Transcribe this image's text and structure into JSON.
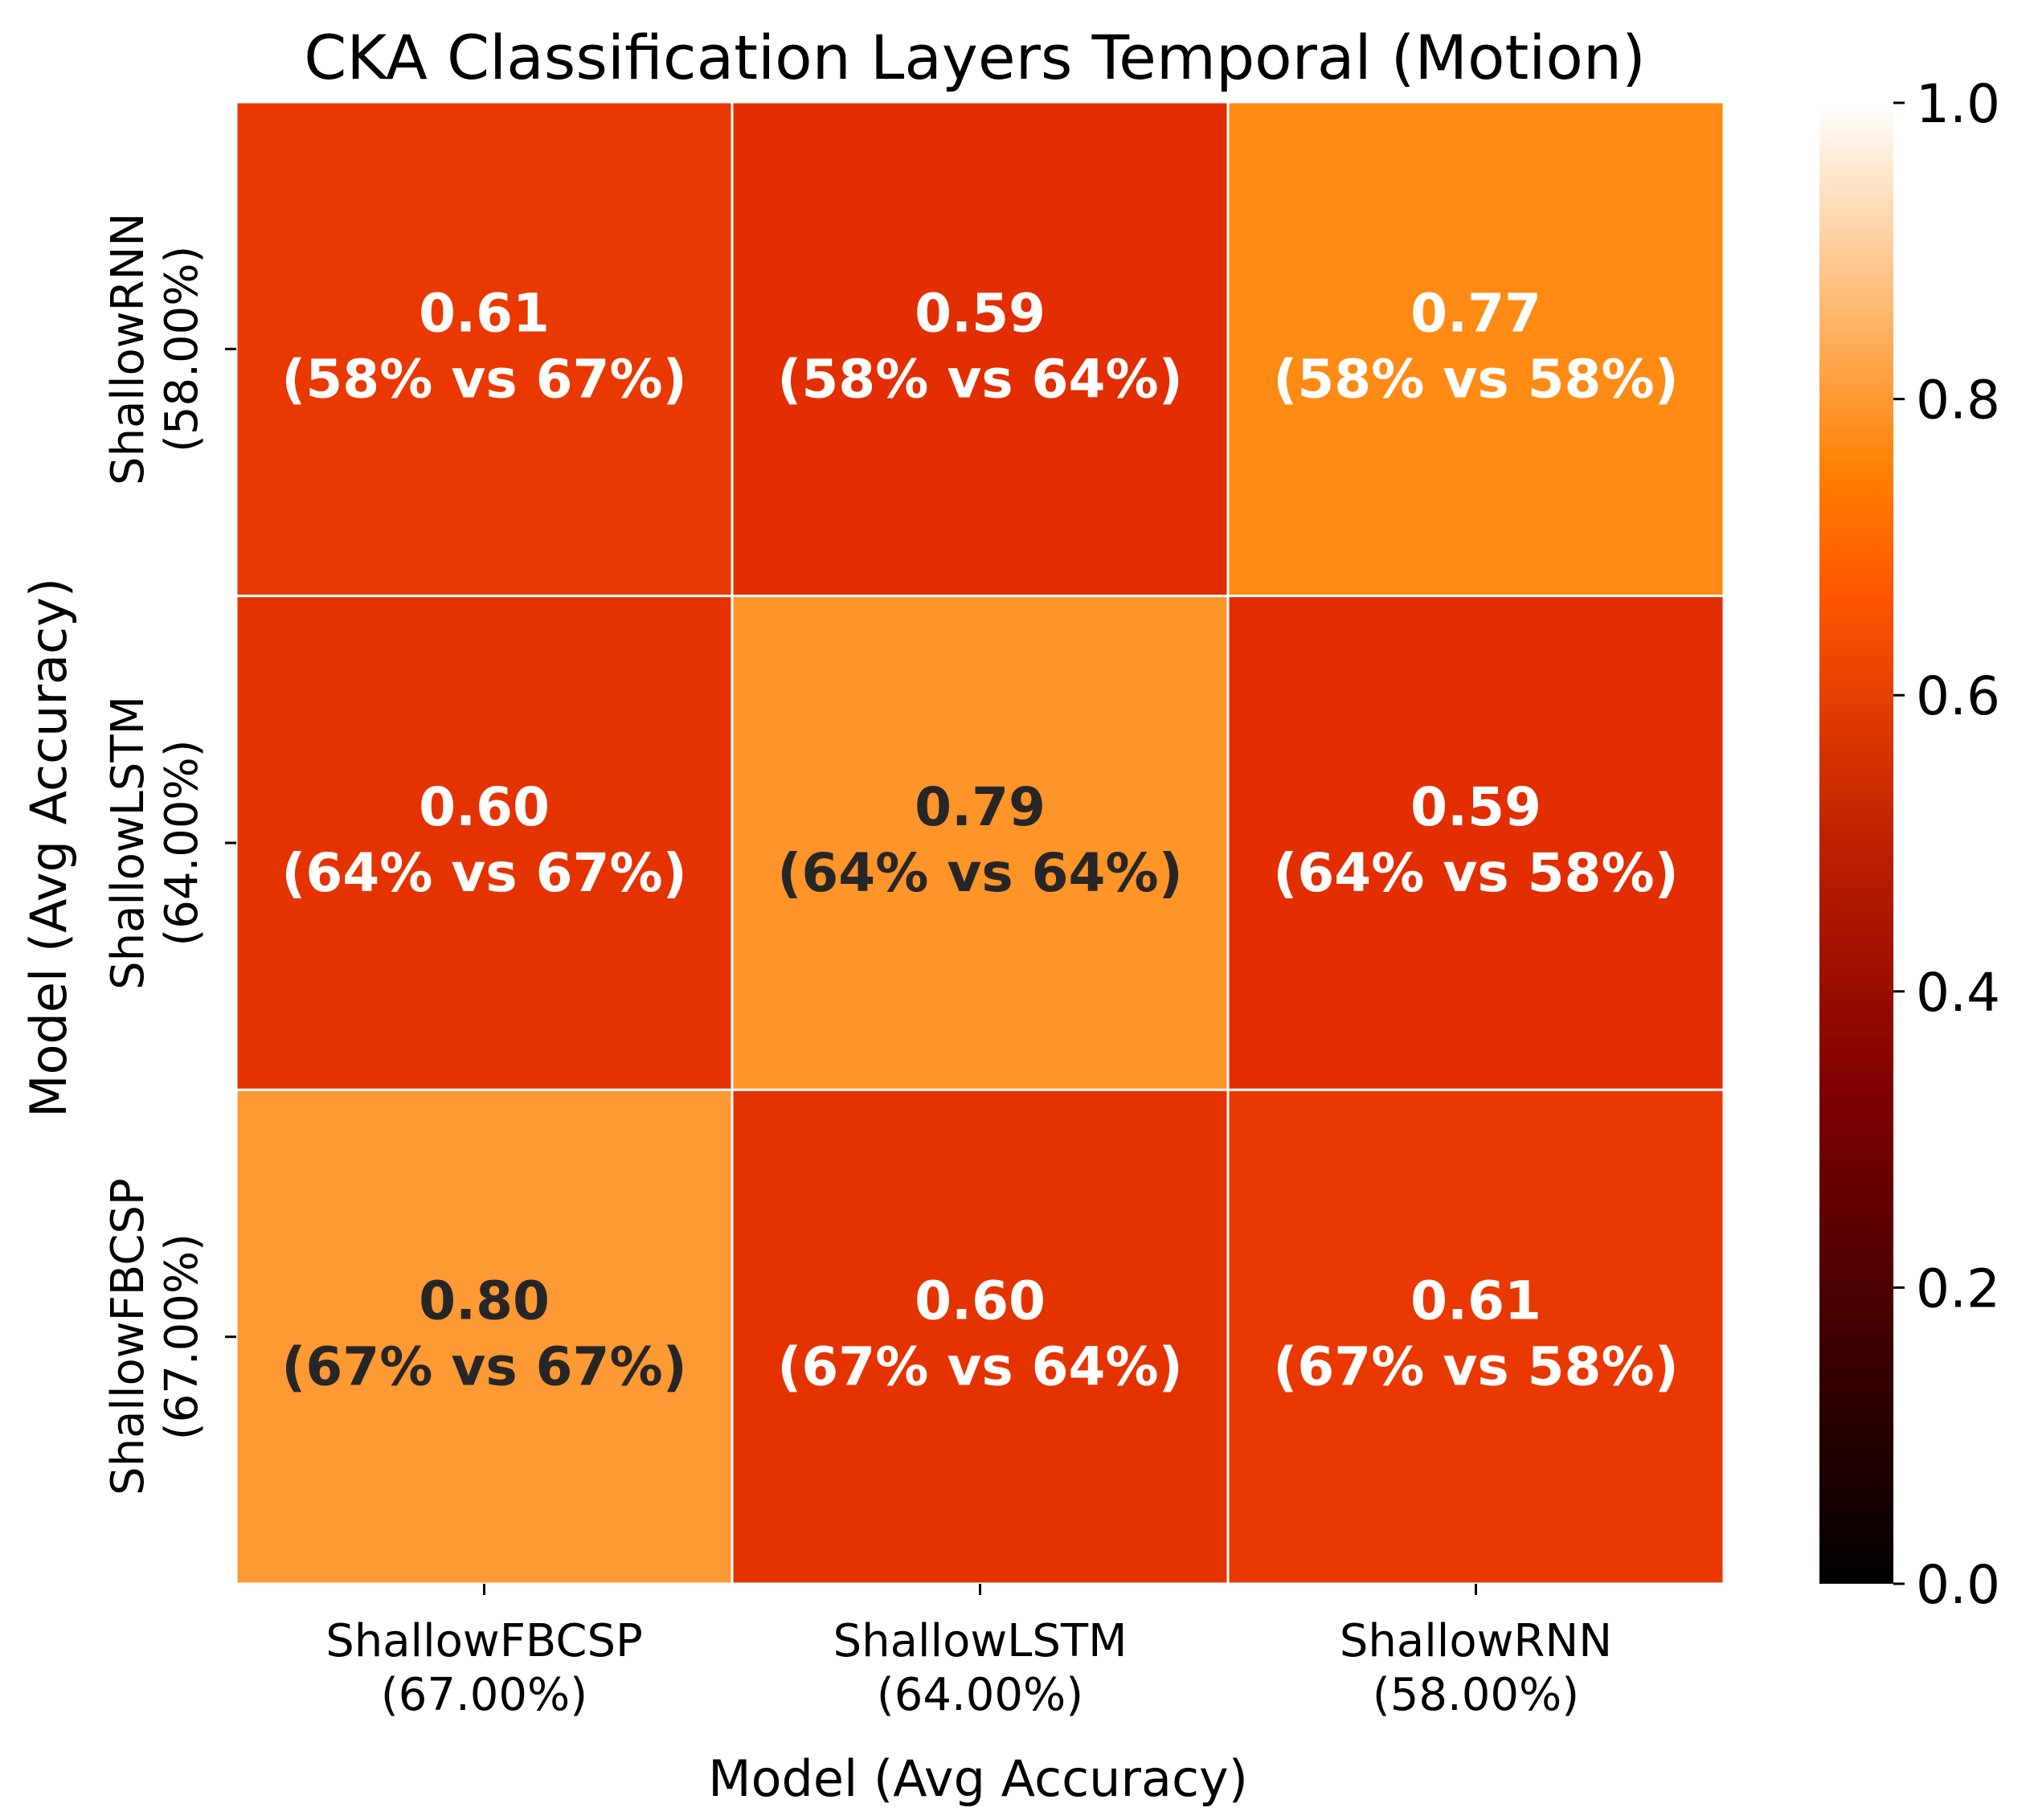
{
  "chart_data": {
    "type": "heatmap",
    "title": "CKA Classification Layers Temporal (Motion)",
    "xlabel": "Model (Avg Accuracy)",
    "ylabel": "Model (Avg Accuracy)",
    "x_categories": [
      {
        "name": "ShallowFBCSP",
        "acc": "(67.00%)"
      },
      {
        "name": "ShallowLSTM",
        "acc": "(64.00%)"
      },
      {
        "name": "ShallowRNN",
        "acc": "(58.00%)"
      }
    ],
    "y_categories": [
      {
        "name": "ShallowRNN",
        "acc": "(58.00%)"
      },
      {
        "name": "ShallowLSTM",
        "acc": "(64.00%)"
      },
      {
        "name": "ShallowFBCSP",
        "acc": "(67.00%)"
      }
    ],
    "cells": [
      [
        {
          "value": 0.61,
          "label": "0.61",
          "sub": "(58% vs 67%)"
        },
        {
          "value": 0.59,
          "label": "0.59",
          "sub": "(58% vs 64%)"
        },
        {
          "value": 0.77,
          "label": "0.77",
          "sub": "(58% vs 58%)"
        }
      ],
      [
        {
          "value": 0.6,
          "label": "0.60",
          "sub": "(64% vs 67%)"
        },
        {
          "value": 0.79,
          "label": "0.79",
          "sub": "(64% vs 64%)"
        },
        {
          "value": 0.59,
          "label": "0.59",
          "sub": "(64% vs 58%)"
        }
      ],
      [
        {
          "value": 0.8,
          "label": "0.80",
          "sub": "(67% vs 67%)"
        },
        {
          "value": 0.6,
          "label": "0.60",
          "sub": "(67% vs 64%)"
        },
        {
          "value": 0.61,
          "label": "0.61",
          "sub": "(67% vs 58%)"
        }
      ]
    ],
    "colormap": "gist_heat",
    "vmin": 0.0,
    "vmax": 1.0,
    "colorbar_ticks": [
      "0.0",
      "0.2",
      "0.4",
      "0.6",
      "0.8",
      "1.0"
    ],
    "annotation_colors": {
      "light": "#ffffff",
      "dark": "#262626"
    },
    "cell_border_color": "#ffffff"
  }
}
